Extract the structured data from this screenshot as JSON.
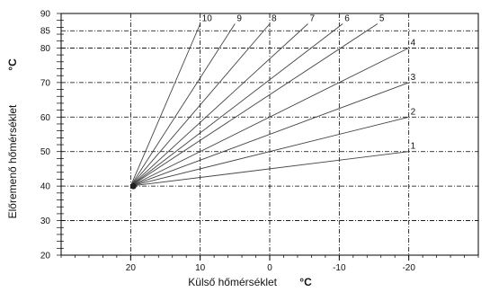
{
  "chart_data": {
    "type": "line",
    "xlabel": "Külső hőmérséklet",
    "xunit": "°C",
    "ylabel": "Előremenő hőmérséklet",
    "yunit": "°C",
    "xlim": [
      30,
      -30
    ],
    "ylim": [
      20,
      90
    ],
    "x_reversed": true,
    "grid": true,
    "xticks": [
      20,
      10,
      0,
      -10,
      -20
    ],
    "xtick_labels": [
      "20",
      "10",
      "0",
      "-10",
      "-20"
    ],
    "yticks": [
      20,
      30,
      40,
      50,
      60,
      70,
      80,
      85,
      90
    ],
    "ytick_labels": [
      "20",
      "30",
      "40",
      "50",
      "60",
      "70",
      "80",
      "85",
      "90"
    ],
    "origin": {
      "x": 20,
      "y": 40
    },
    "series": [
      {
        "name": "1",
        "x": [
          20,
          -20
        ],
        "y": [
          40,
          50
        ]
      },
      {
        "name": "2",
        "x": [
          20,
          -20
        ],
        "y": [
          40,
          60
        ]
      },
      {
        "name": "3",
        "x": [
          20,
          -20
        ],
        "y": [
          40,
          70
        ]
      },
      {
        "name": "4",
        "x": [
          20,
          -20
        ],
        "y": [
          40,
          80
        ]
      },
      {
        "name": "5",
        "x": [
          20,
          -15.5
        ],
        "y": [
          40,
          87
        ]
      },
      {
        "name": "6",
        "x": [
          20,
          -10.5
        ],
        "y": [
          40,
          87
        ]
      },
      {
        "name": "7",
        "x": [
          20,
          -5.5
        ],
        "y": [
          40,
          87
        ]
      },
      {
        "name": "8",
        "x": [
          20,
          0
        ],
        "y": [
          40,
          87
        ]
      },
      {
        "name": "9",
        "x": [
          20,
          5
        ],
        "y": [
          40,
          87
        ]
      },
      {
        "name": "10",
        "x": [
          20,
          10
        ],
        "y": [
          40,
          87
        ]
      }
    ]
  }
}
